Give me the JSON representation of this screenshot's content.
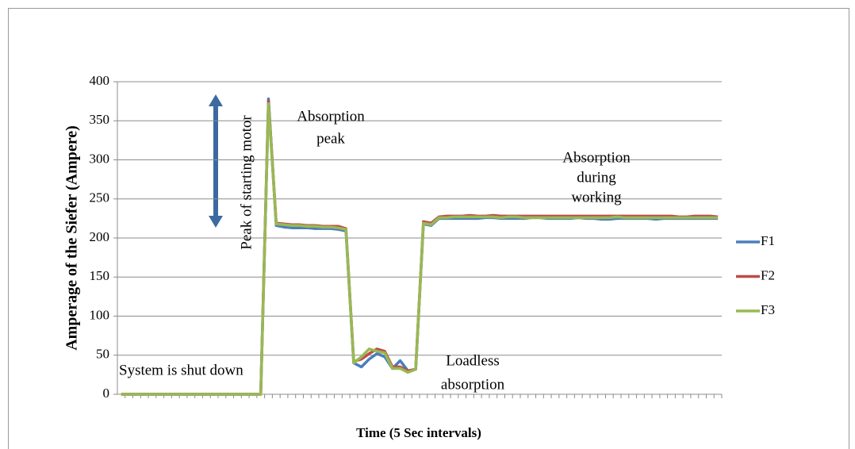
{
  "chart_data": {
    "type": "line",
    "axis_labels": {
      "y": "Amperage of the Siefer (Ampere)",
      "x": "Time (5 Sec intervals)"
    },
    "annotations": [
      {
        "lines": [
          "Absorption",
          "peak"
        ]
      },
      {
        "lines": [
          "Peak of starting motor"
        ]
      },
      {
        "lines": [
          "Absorption",
          "during",
          "working"
        ]
      },
      {
        "lines": [
          "System is shut down"
        ]
      },
      {
        "lines": [
          "Loadless",
          "absorption"
        ]
      }
    ],
    "categories": [
      null,
      null,
      null,
      null,
      null,
      null,
      null,
      null,
      null,
      null,
      null,
      null,
      null,
      null,
      null,
      null,
      null,
      null,
      null,
      null,
      null,
      null,
      null,
      null,
      null,
      null,
      null,
      null,
      null,
      null,
      null,
      null,
      null,
      null,
      null,
      null,
      null,
      null,
      null,
      null,
      null,
      null,
      null,
      null,
      null,
      null,
      null,
      null,
      null,
      null,
      null,
      null,
      null,
      null,
      null,
      null,
      null,
      null,
      null,
      null,
      null,
      null,
      null,
      null,
      null,
      null,
      null,
      null,
      null,
      null,
      null,
      null,
      null,
      null,
      null,
      null,
      null,
      null
    ],
    "series": [
      {
        "name": "F1",
        "color": "#4a7ebb",
        "values": [
          0,
          0,
          0,
          0,
          0,
          0,
          0,
          0,
          0,
          0,
          0,
          0,
          0,
          0,
          0,
          0,
          0,
          0,
          0,
          378,
          216,
          214,
          213,
          213,
          213,
          212,
          212,
          212,
          211,
          209,
          40,
          35,
          45,
          52,
          48,
          33,
          43,
          30,
          32,
          218,
          216,
          225,
          225,
          225,
          225,
          225,
          225,
          226,
          226,
          225,
          225,
          225,
          225,
          226,
          226,
          225,
          225,
          225,
          225,
          226,
          225,
          225,
          224,
          224,
          225,
          225,
          225,
          225,
          225,
          224,
          225,
          225,
          225,
          225,
          225,
          225,
          225,
          225
        ]
      },
      {
        "name": "F2",
        "color": "#be4b48",
        "values": [
          0,
          0,
          0,
          0,
          0,
          0,
          0,
          0,
          0,
          0,
          0,
          0,
          0,
          0,
          0,
          0,
          0,
          0,
          0,
          375,
          219,
          218,
          217,
          217,
          216,
          216,
          215,
          215,
          215,
          212,
          42,
          45,
          52,
          58,
          55,
          35,
          35,
          30,
          32,
          221,
          219,
          227,
          228,
          228,
          228,
          229,
          228,
          228,
          229,
          228,
          228,
          228,
          228,
          228,
          228,
          228,
          228,
          228,
          228,
          228,
          228,
          228,
          228,
          228,
          228,
          228,
          228,
          228,
          228,
          228,
          228,
          228,
          227,
          227,
          228,
          228,
          228,
          227
        ]
      },
      {
        "name": "F3",
        "color": "#98b954",
        "values": [
          0,
          0,
          0,
          0,
          0,
          0,
          0,
          0,
          0,
          0,
          0,
          0,
          0,
          0,
          0,
          0,
          0,
          0,
          0,
          372,
          218,
          217,
          216,
          216,
          215,
          215,
          214,
          214,
          213,
          211,
          40,
          48,
          58,
          55,
          53,
          33,
          33,
          28,
          32,
          219,
          217,
          226,
          226,
          227,
          227,
          227,
          227,
          227,
          227,
          226,
          227,
          227,
          226,
          226,
          226,
          226,
          226,
          226,
          226,
          226,
          226,
          226,
          226,
          226,
          227,
          226,
          226,
          226,
          226,
          226,
          226,
          226,
          226,
          226,
          226,
          226,
          226,
          226
        ]
      }
    ],
    "ylim": [
      0,
      400
    ],
    "yticks": [
      0,
      50,
      100,
      150,
      200,
      250,
      300,
      350,
      400
    ],
    "grid": true,
    "legend": "right"
  }
}
